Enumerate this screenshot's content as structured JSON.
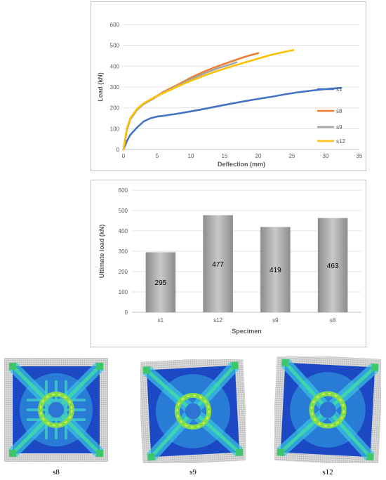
{
  "chart_data": [
    {
      "type": "line",
      "xlabel": "Deflection (mm)",
      "ylabel": "Load (kN)",
      "xlim": [
        0,
        35
      ],
      "ylim": [
        0,
        600
      ],
      "xticks": [
        "0",
        "5",
        "10",
        "15",
        "20",
        "25",
        "30",
        "35"
      ],
      "yticks": [
        "0",
        "100",
        "200",
        "300",
        "400",
        "500",
        "600"
      ],
      "grid": "horizontal",
      "legend": "right",
      "series": [
        {
          "name": "s1",
          "color": "#4472C4",
          "x": [
            0,
            0.5,
            1,
            2,
            3,
            4,
            5,
            6,
            8,
            10,
            12,
            14,
            16,
            18,
            20,
            22,
            24,
            26,
            28,
            30,
            32.3
          ],
          "y": [
            0,
            40,
            70,
            105,
            135,
            150,
            158,
            162,
            172,
            183,
            195,
            208,
            220,
            232,
            243,
            253,
            265,
            275,
            283,
            290,
            296
          ]
        },
        {
          "name": "s8",
          "color": "#ED7D31",
          "x": [
            0,
            0.5,
            1,
            2,
            3,
            4,
            5,
            6,
            8,
            10,
            12,
            14,
            16,
            18,
            20
          ],
          "y": [
            0,
            95,
            145,
            190,
            220,
            238,
            258,
            278,
            310,
            345,
            375,
            400,
            423,
            445,
            463
          ]
        },
        {
          "name": "s9",
          "color": "#A5A5A5",
          "x": [
            0,
            0.5,
            1,
            2,
            3,
            4,
            5,
            6,
            8,
            10,
            12,
            14,
            16,
            16.8
          ],
          "y": [
            0,
            95,
            145,
            190,
            218,
            236,
            256,
            275,
            305,
            338,
            365,
            390,
            410,
            419
          ]
        },
        {
          "name": "s12",
          "color": "#FFC000",
          "x": [
            0,
            0.5,
            1,
            2,
            3,
            4,
            5,
            6,
            8,
            10,
            12,
            14,
            16,
            18,
            20,
            22,
            24,
            25.2
          ],
          "y": [
            0,
            100,
            150,
            195,
            222,
            240,
            258,
            272,
            302,
            330,
            355,
            378,
            398,
            418,
            437,
            455,
            470,
            477
          ]
        }
      ]
    },
    {
      "type": "bar",
      "xlabel": "Specimen",
      "ylabel": "Ultimate load (kN)",
      "ylim": [
        0,
        600
      ],
      "yticks": [
        "0",
        "100",
        "200",
        "300",
        "400",
        "500",
        "600"
      ],
      "categories": [
        "s1",
        "s12",
        "s9",
        "s8"
      ],
      "values": [
        295,
        477,
        419,
        463
      ],
      "value_labels": [
        "295",
        "477",
        "419",
        "463"
      ],
      "grid": "horizontal"
    }
  ],
  "fea_captions": [
    "s8",
    "s9",
    "s12"
  ]
}
